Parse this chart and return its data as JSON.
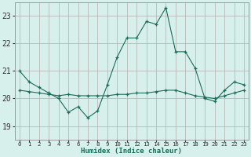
{
  "xlabel": "Humidex (Indice chaleur)",
  "ylabel": "",
  "background_color": "#d8f0ec",
  "grid_color": "#b8b8b8",
  "line_color": "#1a6b5a",
  "ylim": [
    18.5,
    23.5
  ],
  "xlim": [
    -0.5,
    23.5
  ],
  "yticks": [
    19,
    20,
    21,
    22,
    23
  ],
  "xtick_labels": [
    "0",
    "1",
    "2",
    "3",
    "4",
    "5",
    "6",
    "7",
    "8",
    "9",
    "10",
    "11",
    "12",
    "13",
    "14",
    "15",
    "16",
    "17",
    "18",
    "19",
    "20",
    "21",
    "22",
    "23"
  ],
  "line1_x": [
    0,
    1,
    2,
    3,
    4,
    5,
    6,
    7,
    8,
    9,
    10,
    11,
    12,
    13,
    14,
    15,
    16,
    17,
    18,
    19,
    20,
    21,
    22,
    23
  ],
  "line1_y": [
    21.0,
    20.6,
    20.4,
    20.2,
    20.0,
    19.5,
    19.7,
    19.3,
    19.55,
    20.5,
    21.5,
    22.2,
    22.2,
    22.8,
    22.7,
    23.3,
    21.7,
    21.7,
    21.1,
    20.0,
    19.9,
    20.3,
    20.6,
    20.5
  ],
  "line2_x": [
    0,
    1,
    2,
    3,
    4,
    5,
    6,
    7,
    8,
    9,
    10,
    11,
    12,
    13,
    14,
    15,
    16,
    17,
    18,
    19,
    20,
    21,
    22,
    23
  ],
  "line2_y": [
    20.3,
    20.25,
    20.2,
    20.15,
    20.1,
    20.15,
    20.1,
    20.1,
    20.1,
    20.1,
    20.15,
    20.15,
    20.2,
    20.2,
    20.25,
    20.3,
    20.3,
    20.2,
    20.1,
    20.05,
    20.0,
    20.1,
    20.2,
    20.3
  ]
}
